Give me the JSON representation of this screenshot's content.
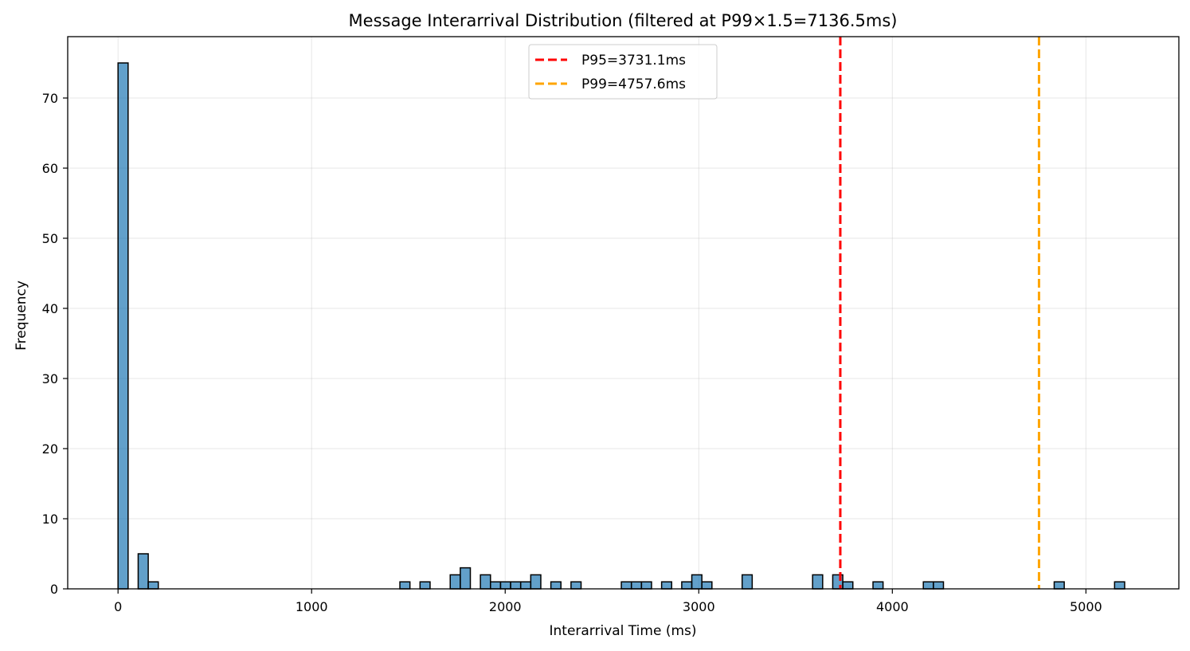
{
  "chart_data": {
    "type": "bar",
    "title": "Message Interarrival Distribution (filtered at P99×1.5=7136.5ms)",
    "xlabel": "Interarrival Time (ms)",
    "ylabel": "Frequency",
    "xlim": [
      -260,
      5480
    ],
    "ylim": [
      0,
      78.75
    ],
    "xticks": [
      0,
      1000,
      2000,
      3000,
      4000,
      5000
    ],
    "yticks": [
      0,
      10,
      20,
      30,
      40,
      50,
      60,
      70
    ],
    "grid": true,
    "legend_position": "top-center",
    "bin_width": 52,
    "bar_color": "#1f77b4",
    "bins": [
      {
        "x": 26,
        "count": 75
      },
      {
        "x": 130,
        "count": 5
      },
      {
        "x": 182,
        "count": 1
      },
      {
        "x": 1482,
        "count": 1
      },
      {
        "x": 1586,
        "count": 1
      },
      {
        "x": 1742,
        "count": 2
      },
      {
        "x": 1794,
        "count": 3
      },
      {
        "x": 1898,
        "count": 2
      },
      {
        "x": 1950,
        "count": 1
      },
      {
        "x": 2002,
        "count": 1
      },
      {
        "x": 2054,
        "count": 1
      },
      {
        "x": 2106,
        "count": 1
      },
      {
        "x": 2158,
        "count": 2
      },
      {
        "x": 2262,
        "count": 1
      },
      {
        "x": 2366,
        "count": 1
      },
      {
        "x": 2626,
        "count": 1
      },
      {
        "x": 2678,
        "count": 1
      },
      {
        "x": 2730,
        "count": 1
      },
      {
        "x": 2834,
        "count": 1
      },
      {
        "x": 2938,
        "count": 1
      },
      {
        "x": 2990,
        "count": 2
      },
      {
        "x": 3042,
        "count": 1
      },
      {
        "x": 3250,
        "count": 2
      },
      {
        "x": 3614,
        "count": 2
      },
      {
        "x": 3718,
        "count": 2
      },
      {
        "x": 3770,
        "count": 1
      },
      {
        "x": 3926,
        "count": 1
      },
      {
        "x": 4186,
        "count": 1
      },
      {
        "x": 4238,
        "count": 1
      },
      {
        "x": 4862,
        "count": 1
      },
      {
        "x": 5174,
        "count": 1
      }
    ],
    "reference_lines": [
      {
        "label": "P95=3731.1ms",
        "x": 3731.1,
        "color": "#ff0000"
      },
      {
        "label": "P99=4757.6ms",
        "x": 4757.6,
        "color": "#ffa500"
      }
    ]
  }
}
